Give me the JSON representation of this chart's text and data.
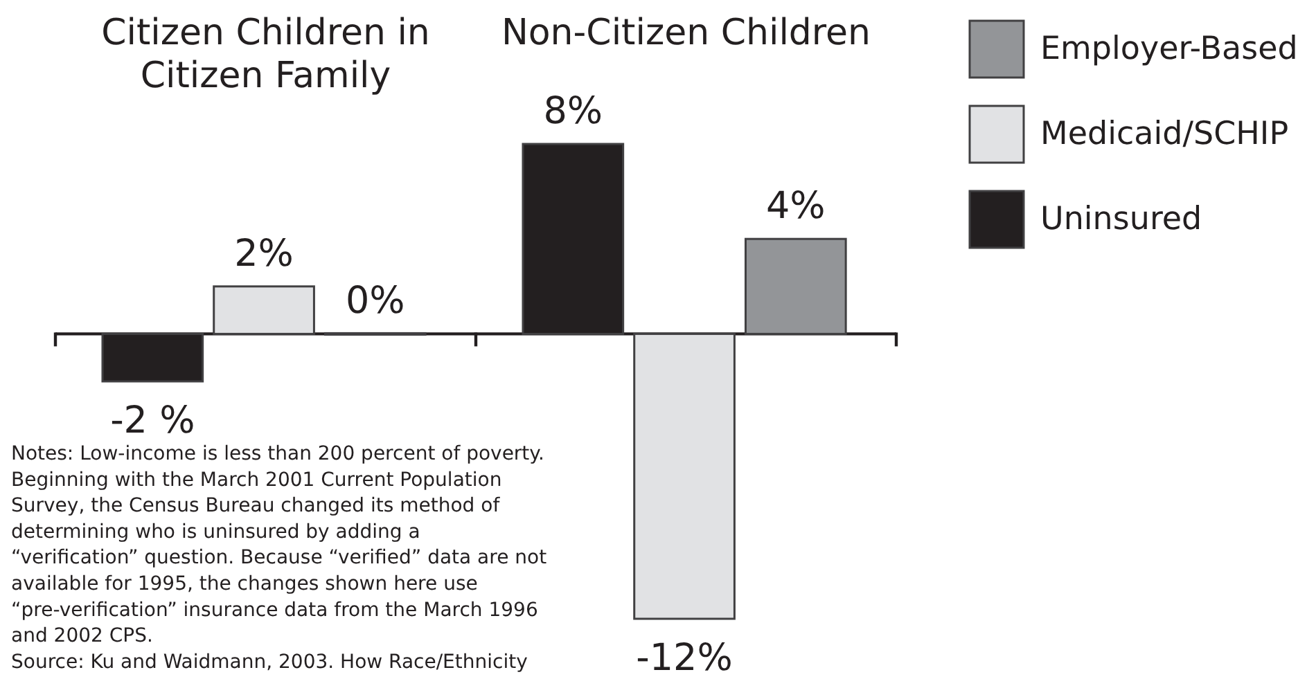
{
  "chart_data": {
    "type": "bar",
    "categories": [
      "Citizen Children in Citizen Family",
      "Non-Citizen Children"
    ],
    "series": [
      {
        "name": "Uninsured",
        "color": "#231f20",
        "values": [
          -2,
          8
        ],
        "value_labels": [
          "-2 %",
          "8%"
        ]
      },
      {
        "name": "Medicaid/SCHIP",
        "color": "#e1e2e4",
        "values": [
          2,
          -12
        ],
        "value_labels": [
          "2%",
          "-12%"
        ]
      },
      {
        "name": "Employer-Based",
        "color": "#939598",
        "values": [
          0,
          4
        ],
        "value_labels": [
          "0%",
          "4%"
        ]
      }
    ],
    "legend": "top right",
    "annotations": [
      "Notes: Low-income is less than 200 percent of poverty. Beginning with the March 2001 Current Population Survey, the Census Bureau changed its method of determining who is uninsured by adding a “verification” question. Because “verified” data are not available for 1995, the changes shown here use “pre-verification” insurance data from the March 1996 and 2002 CPS.",
      "Source: Ku and Waidmann, 2003. How Race/Ethnicity"
    ]
  }
}
